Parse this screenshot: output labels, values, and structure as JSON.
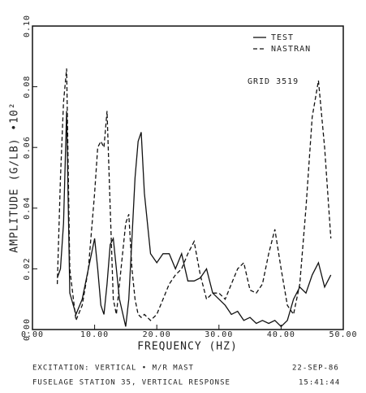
{
  "chart_data": {
    "type": "line",
    "y_label": "AMPLITUDE (G/LB) •10²",
    "x_label": "FREQUENCY (HZ)",
    "annotation": "GRID 3519",
    "legend": "upper right",
    "xlim": [
      0,
      50
    ],
    "xticks": [
      {
        "value": 0,
        "label": "0.00"
      },
      {
        "value": 10,
        "label": "10.00"
      },
      {
        "value": 20,
        "label": "20.00"
      },
      {
        "value": 30,
        "label": "30.00"
      },
      {
        "value": 40,
        "label": "40.00"
      },
      {
        "value": 50,
        "label": "50.00"
      }
    ],
    "ylim": [
      0,
      0.1
    ],
    "yticks": [
      {
        "value": 0,
        "label": "0.00"
      },
      0.02,
      0.04,
      0.06,
      0.08,
      {
        "value": 0.1,
        "label": "0.10"
      }
    ],
    "x": [
      4,
      4.5,
      5,
      5.5,
      6,
      7,
      8,
      9,
      10,
      10.5,
      11,
      11.5,
      12,
      12.5,
      13,
      13.5,
      14,
      15,
      15.5,
      16,
      16.5,
      17,
      17.5,
      18,
      19,
      20,
      21,
      22,
      23,
      24,
      25,
      26,
      27,
      28,
      29,
      30,
      31,
      32,
      33,
      34,
      35,
      36,
      37,
      38,
      39,
      40,
      41,
      42,
      43,
      44,
      45,
      46,
      47,
      48
    ],
    "series": [
      {
        "name": "TEST",
        "color": "#111111",
        "style": "solid",
        "values": [
          0.017,
          0.02,
          0.035,
          0.072,
          0.012,
          0.005,
          0.01,
          0.02,
          0.03,
          0.02,
          0.008,
          0.005,
          0.015,
          0.028,
          0.03,
          0.02,
          0.01,
          0.001,
          0.01,
          0.03,
          0.05,
          0.062,
          0.065,
          0.045,
          0.025,
          0.022,
          0.025,
          0.025,
          0.02,
          0.025,
          0.016,
          0.016,
          0.017,
          0.02,
          0.012,
          0.01,
          0.008,
          0.005,
          0.006,
          0.003,
          0.004,
          0.002,
          0.003,
          0.002,
          0.003,
          0.001,
          0.003,
          0.01,
          0.014,
          0.012,
          0.018,
          0.022,
          0.014,
          0.018
        ]
      },
      {
        "name": "NASTRAN",
        "color": "#111111",
        "style": "dashed",
        "values": [
          0.015,
          0.05,
          0.075,
          0.086,
          0.02,
          0.003,
          0.008,
          0.02,
          0.045,
          0.06,
          0.062,
          0.06,
          0.072,
          0.04,
          0.01,
          0.005,
          0.015,
          0.035,
          0.038,
          0.02,
          0.01,
          0.005,
          0.004,
          0.005,
          0.003,
          0.005,
          0.01,
          0.015,
          0.018,
          0.02,
          0.025,
          0.029,
          0.018,
          0.01,
          0.012,
          0.012,
          0.01,
          0.015,
          0.02,
          0.022,
          0.013,
          0.012,
          0.015,
          0.025,
          0.033,
          0.02,
          0.008,
          0.005,
          0.015,
          0.04,
          0.07,
          0.082,
          0.06,
          0.03
        ]
      }
    ]
  },
  "footer": {
    "excitation": "EXCITATION: VERTICAL • M/R MAST",
    "date": "22-SEP-86",
    "station": "FUSELAGE STATION 35, VERTICAL RESPONSE",
    "time": "15:41:44"
  }
}
